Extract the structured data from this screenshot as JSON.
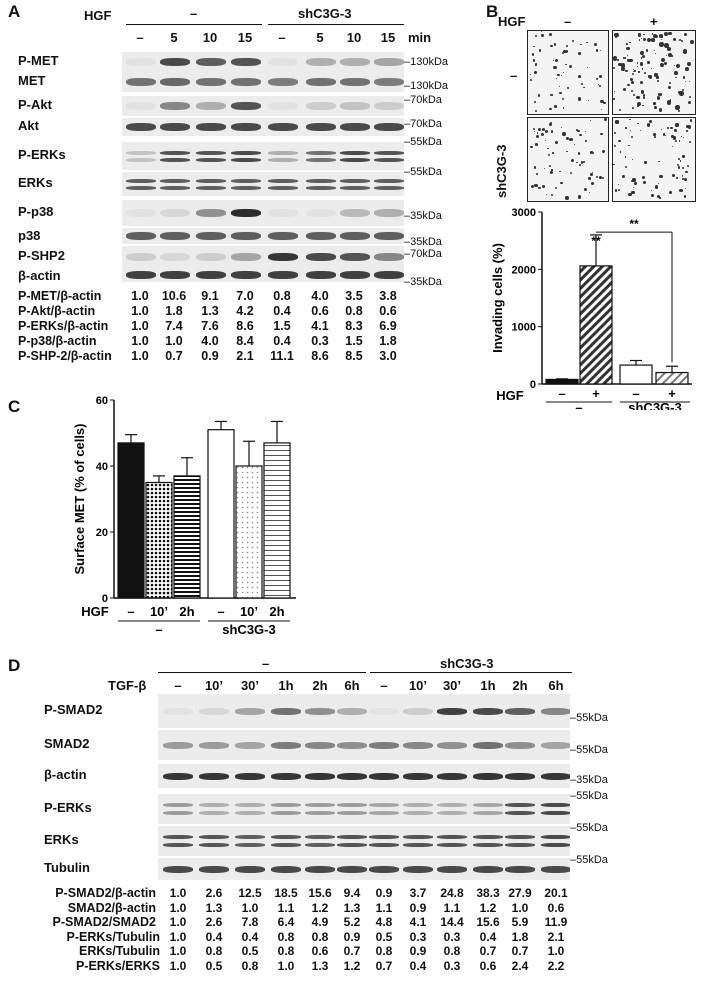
{
  "panelA": {
    "letter": "A",
    "hgf_label": "HGF",
    "group_ctrl": "–",
    "group_sh": "shC3G-3",
    "lanes": [
      "–",
      "5",
      "10",
      "15",
      "–",
      "5",
      "10",
      "15"
    ],
    "min_label": "min",
    "rows": [
      {
        "label": "P-MET",
        "kda": "130kDa"
      },
      {
        "label": "MET",
        "kda": "130kDa"
      },
      {
        "label": "P-Akt",
        "kda": "70kDa"
      },
      {
        "label": "Akt",
        "kda": "70kDa"
      },
      {
        "label": "P-ERKs",
        "kda": "55kDa"
      },
      {
        "label": "ERKs",
        "kda": "55kDa"
      },
      {
        "label": "P-p38",
        "kda": "35kDa"
      },
      {
        "label": "p38",
        "kda": "35kDa"
      },
      {
        "label": "P-SHP2",
        "kda": "70kDa"
      },
      {
        "label": "β-actin",
        "kda": "35kDa"
      }
    ],
    "quant": [
      {
        "label": "P-MET/β-actin",
        "values": [
          "1.0",
          "10.6",
          "9.1",
          "7.0",
          "0.8",
          "4.0",
          "3.5",
          "3.8"
        ]
      },
      {
        "label": "P-Akt/β-actin",
        "values": [
          "1.0",
          "1.8",
          "1.3",
          "4.2",
          "0.4",
          "0.6",
          "0.8",
          "0.6"
        ]
      },
      {
        "label": "P-ERKs/β-actin",
        "values": [
          "1.0",
          "7.4",
          "7.6",
          "8.6",
          "1.5",
          "4.1",
          "8.3",
          "6.9"
        ]
      },
      {
        "label": "P-p38/β-actin",
        "values": [
          "1.0",
          "1.0",
          "4.0",
          "8.4",
          "0.4",
          "0.3",
          "1.5",
          "1.8"
        ]
      },
      {
        "label": "P-SHP-2/β-actin",
        "values": [
          "1.0",
          "0.7",
          "0.9",
          "2.1",
          "11.1",
          "8.6",
          "8.5",
          "3.0"
        ]
      }
    ]
  },
  "panelB": {
    "letter": "B",
    "hgf_label": "HGF",
    "col_minus": "–",
    "col_plus": "+",
    "row_minus": "–",
    "row_sh": "shC3G-3",
    "sig1": "**",
    "sig2": "**"
  },
  "panelC": {
    "letter": "C",
    "hgf_label": "HGF",
    "group_ctrl": "–",
    "group_sh": "shC3G-3"
  },
  "panelD": {
    "letter": "D",
    "tgf_label": "TGF-β",
    "group_ctrl": "–",
    "group_sh": "shC3G-3",
    "lanes": [
      "–",
      "10’",
      "30’",
      "1h",
      "2h",
      "6h",
      "–",
      "10’",
      "30’",
      "1h",
      "2h",
      "6h"
    ],
    "rows": [
      {
        "label": "P-SMAD2"
      },
      {
        "label": "SMAD2"
      },
      {
        "label": "β-actin"
      },
      {
        "label": "P-ERKs"
      },
      {
        "label": "ERKs"
      },
      {
        "label": "Tubulin"
      }
    ],
    "kda": [
      "55kDa",
      "55kDa",
      "35kDa",
      "55kDa",
      "55kDa",
      "55kDa"
    ],
    "quant": [
      {
        "label": "P-SMAD2/β-actin",
        "values": [
          "1.0",
          "2.6",
          "12.5",
          "18.5",
          "15.6",
          "9.4",
          "0.9",
          "3.7",
          "24.8",
          "38.3",
          "27.9",
          "20.1"
        ]
      },
      {
        "label": "SMAD2/β-actin",
        "values": [
          "1.0",
          "1.3",
          "1.0",
          "1.1",
          "1.2",
          "1.3",
          "1.1",
          "0.9",
          "1.1",
          "1.2",
          "1.0",
          "0.6"
        ]
      },
      {
        "label": "P-SMAD2/SMAD2",
        "values": [
          "1.0",
          "2.6",
          "7.8",
          "6.4",
          "4.9",
          "5.2",
          "4.8",
          "4.1",
          "14.4",
          "15.6",
          "5.9",
          "11.9"
        ]
      },
      {
        "label": "P-ERKs/Tubulin",
        "values": [
          "1.0",
          "0.4",
          "0.4",
          "0.8",
          "0.8",
          "0.9",
          "0.5",
          "0.3",
          "0.3",
          "0.4",
          "1.8",
          "2.1"
        ]
      },
      {
        "label": "ERKs/Tubulin",
        "values": [
          "1.0",
          "0.8",
          "0.5",
          "0.8",
          "0.6",
          "0.7",
          "0.8",
          "0.9",
          "0.8",
          "0.7",
          "0.7",
          "1.0"
        ]
      },
      {
        "label": "P-ERKs/ERKS",
        "values": [
          "1.0",
          "0.5",
          "0.8",
          "1.0",
          "1.3",
          "1.2",
          "0.7",
          "0.4",
          "0.3",
          "0.6",
          "2.4",
          "2.2"
        ]
      }
    ]
  },
  "chart_data": [
    {
      "type": "bar",
      "panel": "B",
      "ylabel": "Invading cells (%)",
      "ylim": [
        0,
        3000
      ],
      "yticks": [
        "0",
        "1000",
        "2000",
        "3000"
      ],
      "categories": [
        "–",
        "+",
        "–",
        "+"
      ],
      "group_labels": [
        "–",
        "shC3G-3"
      ],
      "xlabel": "HGF",
      "values": [
        80,
        2060,
        330,
        200
      ],
      "errors": [
        10,
        540,
        80,
        110
      ],
      "fills": [
        "solid",
        "hatch",
        "white",
        "hatch-light"
      ]
    },
    {
      "type": "bar",
      "panel": "C",
      "ylabel": "Surface MET (% of cells)",
      "ylim": [
        0,
        60
      ],
      "yticks": [
        "0",
        "20",
        "40",
        "60"
      ],
      "categories": [
        "–",
        "10’",
        "2h",
        "–",
        "10’",
        "2h"
      ],
      "group_labels": [
        "–",
        "shC3G-3"
      ],
      "xlabel": "HGF",
      "values": [
        47,
        35,
        37,
        51,
        40,
        47
      ],
      "errors": [
        2.5,
        2,
        5.5,
        2.5,
        7.5,
        6.5
      ],
      "fills": [
        "solid",
        "dots",
        "hlines",
        "white",
        "dots-light",
        "hlines-light"
      ]
    }
  ]
}
